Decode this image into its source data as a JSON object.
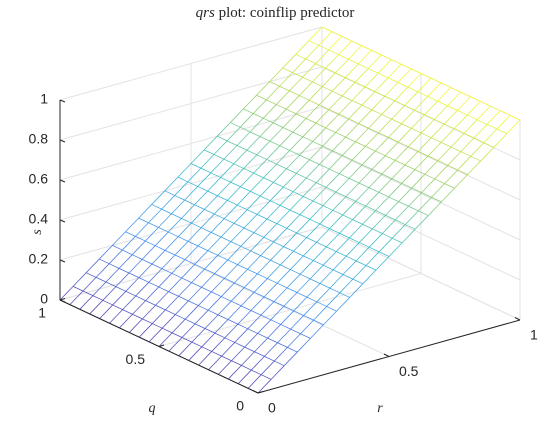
{
  "chart_data": {
    "type": "surface",
    "title": "qrs plot: coinflip predictor",
    "xlabel": "q",
    "ylabel": "r",
    "zlabel": "s",
    "x": [
      0,
      0.05,
      0.1,
      0.15,
      0.2,
      0.25,
      0.3,
      0.35,
      0.4,
      0.45,
      0.5,
      0.55,
      0.6,
      0.65,
      0.7,
      0.75,
      0.8,
      0.85,
      0.9,
      0.95,
      1
    ],
    "y": [
      0,
      0.05,
      0.1,
      0.15,
      0.2,
      0.25,
      0.3,
      0.35,
      0.4,
      0.45,
      0.5,
      0.55,
      0.6,
      0.65,
      0.7,
      0.75,
      0.8,
      0.85,
      0.9,
      0.95,
      1
    ],
    "z": [
      [
        0,
        0.05,
        0.1,
        0.15,
        0.2,
        0.25,
        0.3,
        0.35,
        0.4,
        0.45,
        0.5,
        0.55,
        0.6,
        0.65,
        0.7,
        0.75,
        0.8,
        0.85,
        0.9,
        0.95,
        1
      ],
      [
        0,
        0.05,
        0.1,
        0.15,
        0.2,
        0.25,
        0.3,
        0.35,
        0.4,
        0.45,
        0.5,
        0.55,
        0.6,
        0.65,
        0.7,
        0.75,
        0.8,
        0.85,
        0.9,
        0.95,
        1
      ],
      [
        0,
        0.05,
        0.1,
        0.15,
        0.2,
        0.25,
        0.3,
        0.35,
        0.4,
        0.45,
        0.5,
        0.55,
        0.6,
        0.65,
        0.7,
        0.75,
        0.8,
        0.85,
        0.9,
        0.95,
        1
      ],
      [
        0,
        0.05,
        0.1,
        0.15,
        0.2,
        0.25,
        0.3,
        0.35,
        0.4,
        0.45,
        0.5,
        0.55,
        0.6,
        0.65,
        0.7,
        0.75,
        0.8,
        0.85,
        0.9,
        0.95,
        1
      ],
      [
        0,
        0.05,
        0.1,
        0.15,
        0.2,
        0.25,
        0.3,
        0.35,
        0.4,
        0.45,
        0.5,
        0.55,
        0.6,
        0.65,
        0.7,
        0.75,
        0.8,
        0.85,
        0.9,
        0.95,
        1
      ],
      [
        0,
        0.05,
        0.1,
        0.15,
        0.2,
        0.25,
        0.3,
        0.35,
        0.4,
        0.45,
        0.5,
        0.55,
        0.6,
        0.65,
        0.7,
        0.75,
        0.8,
        0.85,
        0.9,
        0.95,
        1
      ],
      [
        0,
        0.05,
        0.1,
        0.15,
        0.2,
        0.25,
        0.3,
        0.35,
        0.4,
        0.45,
        0.5,
        0.55,
        0.6,
        0.65,
        0.7,
        0.75,
        0.8,
        0.85,
        0.9,
        0.95,
        1
      ],
      [
        0,
        0.05,
        0.1,
        0.15,
        0.2,
        0.25,
        0.3,
        0.35,
        0.4,
        0.45,
        0.5,
        0.55,
        0.6,
        0.65,
        0.7,
        0.75,
        0.8,
        0.85,
        0.9,
        0.95,
        1
      ],
      [
        0,
        0.05,
        0.1,
        0.15,
        0.2,
        0.25,
        0.3,
        0.35,
        0.4,
        0.45,
        0.5,
        0.55,
        0.6,
        0.65,
        0.7,
        0.75,
        0.8,
        0.85,
        0.9,
        0.95,
        1
      ],
      [
        0,
        0.05,
        0.1,
        0.15,
        0.2,
        0.25,
        0.3,
        0.35,
        0.4,
        0.45,
        0.5,
        0.55,
        0.6,
        0.65,
        0.7,
        0.75,
        0.8,
        0.85,
        0.9,
        0.95,
        1
      ],
      [
        0,
        0.05,
        0.1,
        0.15,
        0.2,
        0.25,
        0.3,
        0.35,
        0.4,
        0.45,
        0.5,
        0.55,
        0.6,
        0.65,
        0.7,
        0.75,
        0.8,
        0.85,
        0.9,
        0.95,
        1
      ],
      [
        0,
        0.05,
        0.1,
        0.15,
        0.2,
        0.25,
        0.3,
        0.35,
        0.4,
        0.45,
        0.5,
        0.55,
        0.6,
        0.65,
        0.7,
        0.75,
        0.8,
        0.85,
        0.9,
        0.95,
        1
      ],
      [
        0,
        0.05,
        0.1,
        0.15,
        0.2,
        0.25,
        0.3,
        0.35,
        0.4,
        0.45,
        0.5,
        0.55,
        0.6,
        0.65,
        0.7,
        0.75,
        0.8,
        0.85,
        0.9,
        0.95,
        1
      ],
      [
        0,
        0.05,
        0.1,
        0.15,
        0.2,
        0.25,
        0.3,
        0.35,
        0.4,
        0.45,
        0.5,
        0.55,
        0.6,
        0.65,
        0.7,
        0.75,
        0.8,
        0.85,
        0.9,
        0.95,
        1
      ],
      [
        0,
        0.05,
        0.1,
        0.15,
        0.2,
        0.25,
        0.3,
        0.35,
        0.4,
        0.45,
        0.5,
        0.55,
        0.6,
        0.65,
        0.7,
        0.75,
        0.8,
        0.85,
        0.9,
        0.95,
        1
      ],
      [
        0,
        0.05,
        0.1,
        0.15,
        0.2,
        0.25,
        0.3,
        0.35,
        0.4,
        0.45,
        0.5,
        0.55,
        0.6,
        0.65,
        0.7,
        0.75,
        0.8,
        0.85,
        0.9,
        0.95,
        1
      ],
      [
        0,
        0.05,
        0.1,
        0.15,
        0.2,
        0.25,
        0.3,
        0.35,
        0.4,
        0.45,
        0.5,
        0.55,
        0.6,
        0.65,
        0.7,
        0.75,
        0.8,
        0.85,
        0.9,
        0.95,
        1
      ],
      [
        0,
        0.05,
        0.1,
        0.15,
        0.2,
        0.25,
        0.3,
        0.35,
        0.4,
        0.45,
        0.5,
        0.55,
        0.6,
        0.65,
        0.7,
        0.75,
        0.8,
        0.85,
        0.9,
        0.95,
        1
      ],
      [
        0,
        0.05,
        0.1,
        0.15,
        0.2,
        0.25,
        0.3,
        0.35,
        0.4,
        0.45,
        0.5,
        0.55,
        0.6,
        0.65,
        0.7,
        0.75,
        0.8,
        0.85,
        0.9,
        0.95,
        1
      ],
      [
        0,
        0.05,
        0.1,
        0.15,
        0.2,
        0.25,
        0.3,
        0.35,
        0.4,
        0.45,
        0.5,
        0.55,
        0.6,
        0.65,
        0.7,
        0.75,
        0.8,
        0.85,
        0.9,
        0.95,
        1
      ],
      [
        0,
        0.05,
        0.1,
        0.15,
        0.2,
        0.25,
        0.3,
        0.35,
        0.4,
        0.45,
        0.5,
        0.55,
        0.6,
        0.65,
        0.7,
        0.75,
        0.8,
        0.85,
        0.9,
        0.95,
        1
      ]
    ],
    "xlim": [
      0,
      1
    ],
    "ylim": [
      0,
      1
    ],
    "zlim": [
      0,
      1
    ],
    "xticks": [
      0,
      0.5,
      1
    ],
    "yticks": [
      0,
      0.5,
      1
    ],
    "zticks": [
      0,
      0.2,
      0.4,
      0.6,
      0.8,
      1
    ],
    "grid": true,
    "colormap": [
      "#3e26a8",
      "#2c7ff0",
      "#1bb3c6",
      "#8fca50",
      "#f9fb15"
    ]
  }
}
